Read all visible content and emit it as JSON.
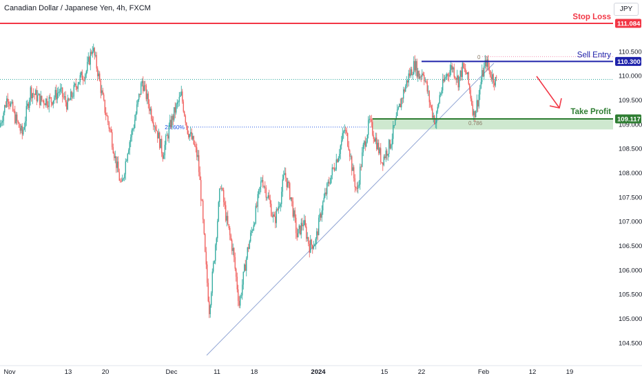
{
  "header": {
    "title": "Canadian Dollar / Japanese Yen, 4h, FXCM",
    "currency": "JPY"
  },
  "colors": {
    "up": "#26a69a",
    "down": "#ef5350",
    "stop_loss": "#f23645",
    "sell_entry": "#1e22aa",
    "take_profit": "#2e7d32",
    "fib": "#1e53e5",
    "zone_fill": "#a5d6a7"
  },
  "chart_data": {
    "type": "candlestick",
    "symbol": "CADJPY",
    "timeframe": "4h",
    "ylim": [
      104.2,
      111.5
    ],
    "y_ticks": [
      "104.500",
      "105.000",
      "105.500",
      "106.000",
      "106.500",
      "107.000",
      "107.500",
      "108.000",
      "108.500",
      "109.000",
      "109.500",
      "110.000",
      "110.500"
    ],
    "x_ticks": [
      "Nov",
      "13",
      "20",
      "Dec",
      "11",
      "18",
      "2024",
      "15",
      "22",
      "Feb",
      "12",
      "19"
    ],
    "price_path": [
      {
        "t": 0,
        "price": 108.95
      },
      {
        "t": 8,
        "price": 109.6
      },
      {
        "t": 14,
        "price": 109.2
      },
      {
        "t": 22,
        "price": 108.8
      },
      {
        "t": 30,
        "price": 109.7
      },
      {
        "t": 40,
        "price": 109.5
      },
      {
        "t": 50,
        "price": 109.5
      },
      {
        "t": 58,
        "price": 109.7
      },
      {
        "t": 66,
        "price": 109.4
      },
      {
        "t": 76,
        "price": 109.9
      },
      {
        "t": 84,
        "price": 110.1
      },
      {
        "t": 90,
        "price": 110.6
      },
      {
        "t": 95,
        "price": 110.1
      },
      {
        "t": 101,
        "price": 109.4
      },
      {
        "t": 108,
        "price": 108.8
      },
      {
        "t": 112,
        "price": 108.3
      },
      {
        "t": 118,
        "price": 107.7
      },
      {
        "t": 124,
        "price": 108.5
      },
      {
        "t": 130,
        "price": 109.0
      },
      {
        "t": 138,
        "price": 109.9
      },
      {
        "t": 146,
        "price": 109.3
      },
      {
        "t": 152,
        "price": 108.9
      },
      {
        "t": 158,
        "price": 108.4
      },
      {
        "t": 164,
        "price": 108.9
      },
      {
        "t": 170,
        "price": 109.3
      },
      {
        "t": 176,
        "price": 109.6
      },
      {
        "t": 182,
        "price": 108.9
      },
      {
        "t": 188,
        "price": 108.6
      },
      {
        "t": 192,
        "price": 108.3
      },
      {
        "t": 196,
        "price": 107.3
      },
      {
        "t": 199,
        "price": 106.3
      },
      {
        "t": 203,
        "price": 105.2
      },
      {
        "t": 208,
        "price": 106.3
      },
      {
        "t": 214,
        "price": 107.8
      },
      {
        "t": 220,
        "price": 107.0
      },
      {
        "t": 226,
        "price": 106.4
      },
      {
        "t": 232,
        "price": 105.3
      },
      {
        "t": 240,
        "price": 106.4
      },
      {
        "t": 248,
        "price": 107.2
      },
      {
        "t": 254,
        "price": 107.9
      },
      {
        "t": 260,
        "price": 107.5
      },
      {
        "t": 266,
        "price": 107.0
      },
      {
        "t": 272,
        "price": 107.5
      },
      {
        "t": 276,
        "price": 108.0
      },
      {
        "t": 282,
        "price": 107.5
      },
      {
        "t": 288,
        "price": 106.7
      },
      {
        "t": 294,
        "price": 107.0
      },
      {
        "t": 300,
        "price": 106.5
      },
      {
        "t": 306,
        "price": 106.6
      },
      {
        "t": 312,
        "price": 107.3
      },
      {
        "t": 320,
        "price": 107.9
      },
      {
        "t": 328,
        "price": 108.4
      },
      {
        "t": 334,
        "price": 108.9
      },
      {
        "t": 338,
        "price": 108.6
      },
      {
        "t": 342,
        "price": 108.0
      },
      {
        "t": 346,
        "price": 107.6
      },
      {
        "t": 352,
        "price": 108.5
      },
      {
        "t": 358,
        "price": 109.05
      },
      {
        "t": 364,
        "price": 108.7
      },
      {
        "t": 370,
        "price": 108.25
      },
      {
        "t": 378,
        "price": 108.6
      },
      {
        "t": 384,
        "price": 109.1
      },
      {
        "t": 390,
        "price": 109.6
      },
      {
        "t": 396,
        "price": 110.0
      },
      {
        "t": 402,
        "price": 110.25
      },
      {
        "t": 406,
        "price": 110.0
      },
      {
        "t": 410,
        "price": 110.1
      },
      {
        "t": 414,
        "price": 109.7
      },
      {
        "t": 418,
        "price": 109.3
      },
      {
        "t": 422,
        "price": 109.05
      },
      {
        "t": 426,
        "price": 109.6
      },
      {
        "t": 432,
        "price": 110.0
      },
      {
        "t": 438,
        "price": 110.2
      },
      {
        "t": 444,
        "price": 109.9
      },
      {
        "t": 448,
        "price": 110.15
      },
      {
        "t": 452,
        "price": 110.05
      },
      {
        "t": 456,
        "price": 109.6
      },
      {
        "t": 459,
        "price": 109.2
      },
      {
        "t": 463,
        "price": 109.5
      },
      {
        "t": 467,
        "price": 110.0
      },
      {
        "t": 471,
        "price": 110.3
      },
      {
        "t": 475,
        "price": 110.05
      },
      {
        "t": 480,
        "price": 109.9
      }
    ],
    "levels": [
      {
        "name": "Stop Loss",
        "price": 111.084,
        "label": "111.084"
      },
      {
        "name": "Sell Entry",
        "price": 110.3,
        "label": "110.300"
      },
      {
        "name": "Take Profit",
        "price": 109.117,
        "label": "109.117"
      }
    ],
    "fib_labels": [
      "23.60%",
      "0.786",
      "0"
    ],
    "take_profit_zone": [
      108.9,
      109.117
    ],
    "trendline": [
      {
        "t": 200,
        "price": 104.25
      },
      {
        "t": 470,
        "price": 110.25
      }
    ],
    "annotations": [
      "Stop Loss",
      "Sell Entry",
      "Take Profit"
    ],
    "projection": "down-arrow"
  }
}
